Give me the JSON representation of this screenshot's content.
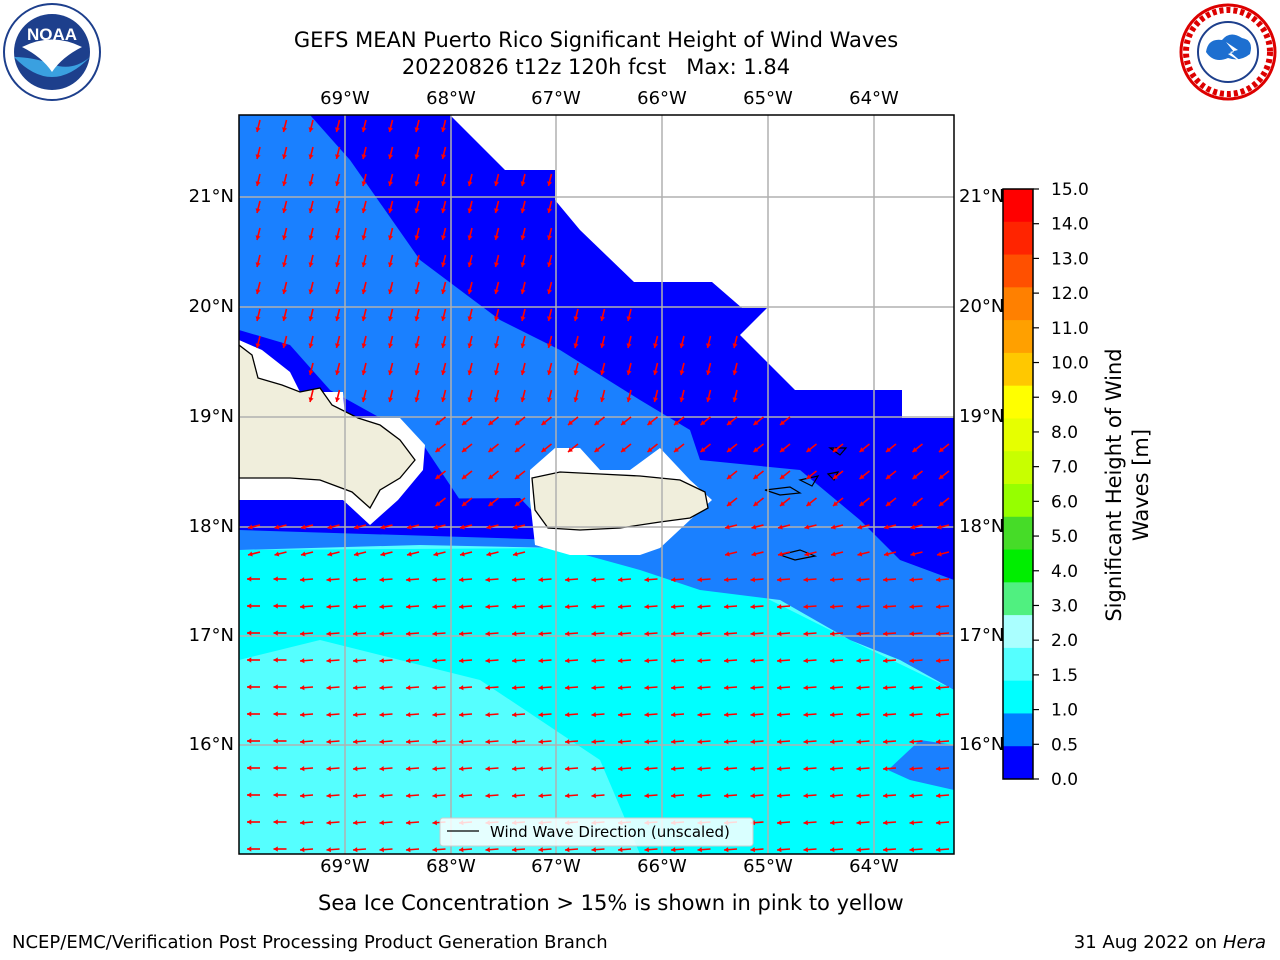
{
  "title_line1": "GEFS MEAN Puerto Rico Significant Height of Wind Waves",
  "title_line2": "20220826 t12z 120h fcst   Max: 1.84",
  "lon_labels": [
    "69°W",
    "68°W",
    "67°W",
    "66°W",
    "65°W",
    "64°W"
  ],
  "lat_labels": [
    "21°N",
    "20°N",
    "19°N",
    "18°N",
    "17°N",
    "16°N"
  ],
  "legend_label": "Wind Wave Direction (unscaled)",
  "colorbar": {
    "title": "Significant Height of Wind Waves [m]",
    "ticks": [
      "15.0",
      "14.0",
      "13.0",
      "12.0",
      "11.0",
      "10.0",
      "9.0",
      "8.0",
      "7.0",
      "6.0",
      "5.0",
      "4.0",
      "3.0",
      "2.0",
      "1.5",
      "1.0",
      "0.5",
      "0.0"
    ],
    "colors": [
      "#ff0000",
      "#ff2400",
      "#ff5000",
      "#ff8000",
      "#ffa000",
      "#ffc800",
      "#ffff00",
      "#e6ff00",
      "#c8ff00",
      "#96ff00",
      "#46dc28",
      "#00ee00",
      "#50f080",
      "#aaffff",
      "#55ffff",
      "#00ffff",
      "#0080ff",
      "#0000ff"
    ]
  },
  "footer_note": "Sea Ice Concentration > 15% is shown in pink to yellow",
  "footer_branch": "NCEP/EMC/Verification Post Processing Product Generation Branch",
  "footer_date": "31 Aug 2022 on",
  "footer_host": "Hera",
  "noaa_logo_text": "NOAA",
  "colors": {
    "deep_blue": "#0000ff",
    "mid_blue": "#1a80ff",
    "cyan": "#00ffff",
    "light_cyan": "#55ffff",
    "land": "#f0eedc",
    "arrow": "#ff0000",
    "grid": "#b0b0b0"
  }
}
